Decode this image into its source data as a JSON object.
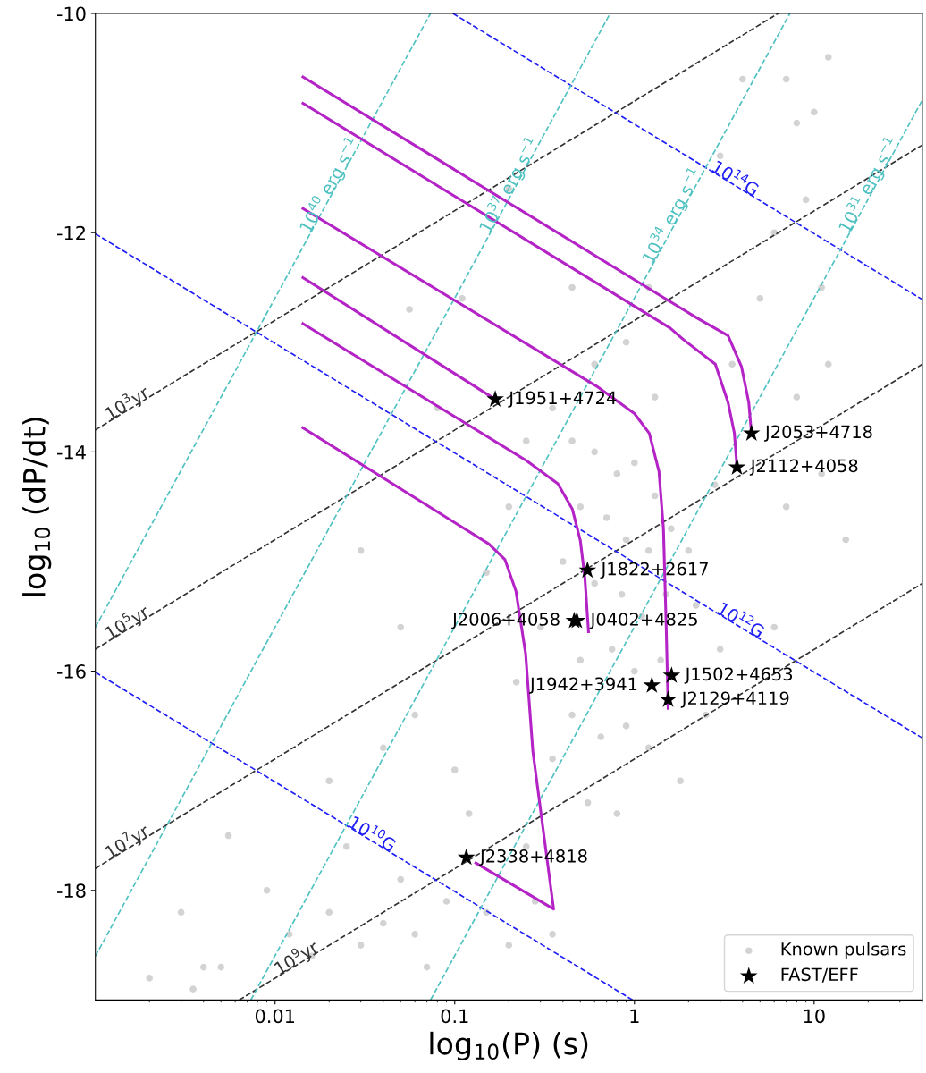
{
  "chart_data": {
    "type": "scatter",
    "xlabel": "log$_{10}$(P) (s)",
    "ylabel": "log$_{10}$ (dP/dt)",
    "log": "x",
    "xlim": [
      0.001,
      40
    ],
    "xticks": [
      0.01,
      0.1,
      1,
      10
    ],
    "ylim": [
      -19,
      -10
    ],
    "yticks": [
      {
        "value": -18,
        "label": "-18"
      },
      {
        "value": -16,
        "label": "-16"
      },
      {
        "value": -14,
        "label": "-14"
      },
      {
        "value": -12,
        "label": "-12"
      },
      {
        "value": -10,
        "label": "-10"
      }
    ],
    "grid": false,
    "legend": "bottom right",
    "series": [
      {
        "name": "10$^{3}$yr",
        "type": "line",
        "line_style": "dashed",
        "color": "#333333",
        "x": [
          0.001,
          0.0012,
          6.31
        ],
        "values": [
          -13.8,
          -13.72,
          -10
        ]
      },
      {
        "name": "10$^{5}$yr",
        "type": "line",
        "line_style": "dashed",
        "color": "#333333",
        "x": [
          0.001,
          0.0012,
          40
        ],
        "values": [
          -15.8,
          -15.72,
          -11.2
        ]
      },
      {
        "name": "10$^{7}$yr",
        "type": "line",
        "line_style": "dashed",
        "color": "#333333",
        "x": [
          0.001,
          0.0012,
          40
        ],
        "values": [
          -17.8,
          -17.72,
          -13.2
        ]
      },
      {
        "name": "10$^{9}$yr",
        "type": "line",
        "line_style": "dashed",
        "color": "#333333",
        "x": [
          0.00631,
          0.0105,
          40
        ],
        "values": [
          -19,
          -18.78,
          -15.2
        ]
      },
      {
        "name": "10$^{14}$G",
        "type": "line",
        "line_style": "dashed",
        "color": "#1f1ff5",
        "x": [
          0.0977,
          2.63,
          40
        ],
        "values": [
          -10,
          -11.43,
          -12.61
        ]
      },
      {
        "name": "10$^{12}$G",
        "type": "line",
        "line_style": "dashed",
        "color": "#1f1ff5",
        "x": [
          0.001,
          2.82,
          40
        ],
        "values": [
          -12.01,
          -15.46,
          -16.61
        ]
      },
      {
        "name": "10$^{10}$G",
        "type": "line",
        "line_style": "dashed",
        "color": "#1f1ff5",
        "x": [
          0.001,
          0.0251,
          0.977
        ],
        "values": [
          -16.01,
          -17.41,
          -19
        ]
      },
      {
        "name": "10$^{40}$ erg s$^{−1}$",
        "type": "line",
        "line_style": "dashed",
        "color": "#4fc1c1",
        "x": [
          0.001,
          0.01556,
          0.0733
        ],
        "values": [
          -15.6,
          -12.02,
          -10
        ]
      },
      {
        "name": "10$^{37}$ erg s$^{−1}$",
        "type": "line",
        "line_style": "dashed",
        "color": "#4fc1c1",
        "x": [
          0.001,
          0.1556,
          0.733
        ],
        "values": [
          -18.6,
          -12.02,
          -10
        ]
      },
      {
        "name": "10$^{34}$ erg s$^{−1}$",
        "type": "line",
        "line_style": "dashed",
        "color": "#4fc1c1",
        "x": [
          0.00733,
          1.255,
          7.33
        ],
        "values": [
          -19,
          -12.3,
          -10
        ]
      },
      {
        "name": "10$^{31}$ erg s$^{−1}$",
        "type": "line",
        "line_style": "dashed",
        "color": "#4fc1c1",
        "x": [
          0.0733,
          15.56,
          40
        ],
        "values": [
          -19,
          -12.02,
          -10.79
        ]
      },
      {
        "name": "Known pulsars",
        "marker": "circle",
        "color": "#d3d3d3",
        "x": [
          0.35,
          0.45,
          0.6,
          0.8,
          1.0,
          1.3,
          0.5,
          0.7,
          0.9,
          1.2,
          1.6,
          2.0,
          0.4,
          0.6,
          0.85,
          1.1,
          1.5,
          2.2,
          0.3,
          0.5,
          0.75,
          1.0,
          1.4,
          0.45,
          0.65,
          0.9,
          1.2,
          0.35,
          0.55,
          0.8,
          0.25,
          0.6,
          0.9,
          1.3,
          0.25,
          0.2,
          0.15,
          0.22,
          2.8,
          3.5,
          5,
          3,
          2.5,
          1.8,
          4,
          7,
          8,
          10,
          12,
          6,
          9,
          11,
          8,
          12,
          7,
          11,
          15,
          6,
          3,
          1.2,
          0.45,
          0.2,
          0.11,
          0.002,
          0.003,
          0.0035,
          0.004,
          0.005,
          0.0055,
          0.009,
          0.012,
          0.016,
          0.02,
          0.025,
          0.03,
          0.04,
          0.05,
          0.06,
          0.07,
          0.09,
          0.15,
          0.2,
          0.35,
          0.28,
          0.02,
          0.04,
          0.06,
          0.1,
          0.12,
          0.03,
          0.05,
          0.056,
          0.08
        ],
        "values": [
          -13.6,
          -13.9,
          -14.0,
          -14.2,
          -14.1,
          -14.4,
          -14.5,
          -14.6,
          -14.8,
          -14.9,
          -14.7,
          -14.9,
          -15.0,
          -15.2,
          -15.3,
          -15.5,
          -15.3,
          -15.4,
          -15.6,
          -15.9,
          -15.8,
          -16.0,
          -15.9,
          -16.4,
          -16.6,
          -16.5,
          -16.7,
          -16.8,
          -17.2,
          -17.3,
          -17.6,
          -13.2,
          -13.0,
          -13.5,
          -13.9,
          -14.5,
          -15.1,
          -16.1,
          -14.3,
          -13.2,
          -12.6,
          -15.8,
          -16.4,
          -17.0,
          -10.6,
          -10.6,
          -11.0,
          -10.9,
          -10.4,
          -12.0,
          -11.7,
          -12.5,
          -13.5,
          -13.2,
          -14.5,
          -14.2,
          -14.8,
          -15.6,
          -11.3,
          -12.5,
          -12.5,
          -11.6,
          -12.6,
          -18.8,
          -18.2,
          -18.9,
          -18.7,
          -18.7,
          -17.5,
          -18.0,
          -18.4,
          -18.6,
          -18.2,
          -17.6,
          -18.5,
          -18.3,
          -17.9,
          -18.4,
          -18.7,
          -18.1,
          -18.2,
          -18.5,
          -18.4,
          -18.1,
          -17.0,
          -16.7,
          -16.4,
          -16.9,
          -17.3,
          -14.9,
          -15.6,
          -12.7,
          -13.6
        ]
      },
      {
        "type": "line",
        "line_style": "solid",
        "color": "#b423c6",
        "x": [
          0.0143,
          2.24,
          3.32,
          3.94,
          4.33,
          4.48
        ],
        "values": [
          -10.58,
          -12.78,
          -12.94,
          -13.22,
          -13.55,
          -13.83
        ]
      },
      {
        "type": "line",
        "line_style": "solid",
        "color": "#b423c6",
        "x": [
          0.0143,
          1.58,
          1.89,
          2.82,
          3.32,
          3.6,
          3.72
        ],
        "values": [
          -10.82,
          -12.87,
          -12.98,
          -13.2,
          -13.55,
          -13.83,
          -14.14
        ]
      },
      {
        "type": "line",
        "line_style": "solid",
        "color": "#b423c6",
        "x": [
          0.0143,
          0.615,
          1.0,
          1.21,
          1.37,
          1.45,
          1.5,
          1.54
        ],
        "values": [
          -11.78,
          -13.4,
          -13.65,
          -13.83,
          -14.18,
          -14.7,
          -15.55,
          -16.34
        ]
      },
      {
        "type": "line",
        "line_style": "solid",
        "color": "#b423c6",
        "x": [
          0.0143,
          0.168
        ],
        "values": [
          -12.41,
          -13.52
        ]
      },
      {
        "type": "line",
        "line_style": "solid",
        "color": "#b423c6",
        "x": [
          0.0143,
          0.251,
          0.375,
          0.451,
          0.5,
          0.53,
          0.555
        ],
        "values": [
          -12.83,
          -14.08,
          -14.29,
          -14.52,
          -14.81,
          -15.15,
          -15.64
        ]
      },
      {
        "type": "line",
        "line_style": "solid",
        "color": "#b423c6",
        "x": [
          0.0143,
          0.155,
          0.19,
          0.219,
          0.248,
          0.272,
          0.355,
          0.131
        ],
        "values": [
          -13.78,
          -14.84,
          -14.98,
          -15.27,
          -15.84,
          -16.73,
          -18.17,
          -17.75
        ]
      },
      {
        "name": "FAST/EFF",
        "marker": "star",
        "color": "#000000",
        "x": [
          0.168,
          4.48,
          3.72,
          0.548,
          0.478,
          0.462,
          1.61,
          1.25,
          1.54,
          0.116
        ],
        "values": [
          -13.52,
          -13.83,
          -14.14,
          -15.08,
          -15.54,
          -15.54,
          -16.04,
          -16.13,
          -16.26,
          -17.7
        ]
      }
    ],
    "annotations": [
      {
        "text": "J1951+4724",
        "x": 0.168,
        "y": -13.52
      },
      {
        "text": "J2053+4718",
        "x": 4.48,
        "y": -13.83
      },
      {
        "text": "J2112+4058",
        "x": 3.72,
        "y": -14.14
      },
      {
        "text": "J1822+2617",
        "x": 0.548,
        "y": -15.08
      },
      {
        "text": "J0402+4825",
        "x": 0.478,
        "y": -15.54
      },
      {
        "text": "J2006+4058",
        "x": 0.462,
        "y": -15.54
      },
      {
        "text": "J1502+4653",
        "x": 1.61,
        "y": -16.04
      },
      {
        "text": "J2129+4119",
        "x": 1.54,
        "y": -16.26
      },
      {
        "text": "J1942+3941",
        "x": 1.25,
        "y": -16.13
      },
      {
        "text": "J2338+4818",
        "x": 0.116,
        "y": -17.7
      }
    ]
  }
}
